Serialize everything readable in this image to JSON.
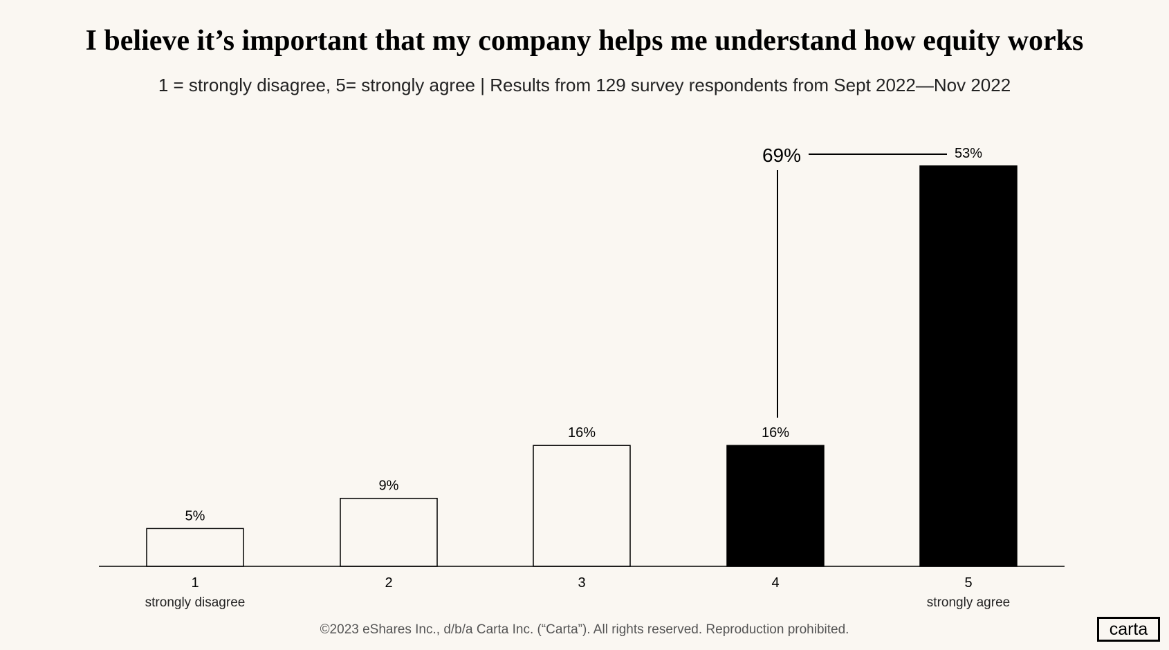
{
  "chart_data": {
    "type": "bar",
    "title": "I believe it’s important that my company helps me understand how equity works",
    "subtitle": "1 = strongly disagree, 5= strongly agree  |  Results from 129 survey respondents from Sept 2022—Nov 2022",
    "categories": [
      "1",
      "2",
      "3",
      "4",
      "5"
    ],
    "category_sublabels": [
      "strongly disagree",
      "",
      "",
      "",
      "strongly agree"
    ],
    "values": [
      5,
      9,
      16,
      16,
      53
    ],
    "data_labels": [
      "5%",
      "9%",
      "16%",
      "16%",
      "53%"
    ],
    "bar_fills": [
      "#faf7f2",
      "#faf7f2",
      "#faf7f2",
      "#000000",
      "#000000"
    ],
    "bracket_annotation": {
      "label": "69%",
      "spans": [
        "4",
        "5"
      ]
    },
    "xlabel": "",
    "ylabel": "",
    "grid": false,
    "ylim": [
      0,
      55
    ]
  },
  "footer": "©2023 eShares Inc., d/b/a Carta Inc. (“Carta”). All rights reserved. Reproduction prohibited.",
  "logo": "carta"
}
